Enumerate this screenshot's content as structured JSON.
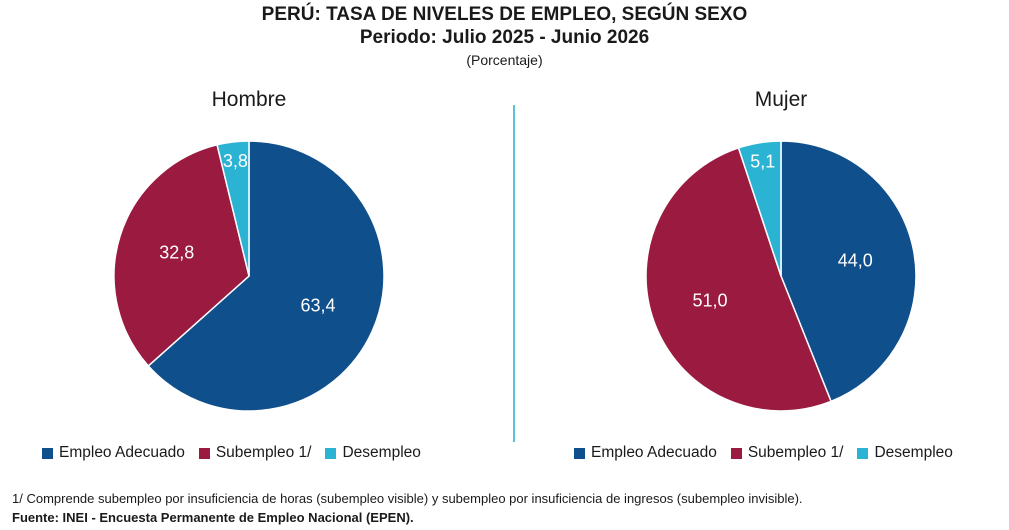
{
  "title": {
    "line1": "PERÚ: TASA DE NIVELES DE EMPLEO, SEGÚN SEXO",
    "line2": "Periodo: Julio 2025 - Junio 2026",
    "line3": "(Porcentaje)"
  },
  "chart_data": [
    {
      "type": "pie",
      "title": "Hombre",
      "categories": [
        "Empleo Adecuado",
        "Subempleo 1/",
        "Desempleo"
      ],
      "values": [
        63.4,
        32.8,
        3.8
      ],
      "labels": [
        "63,4",
        "32,8",
        "3,8"
      ],
      "colors": [
        "#0f4f8c",
        "#9a1a40",
        "#2bb3d3"
      ],
      "legend_position": "bottom"
    },
    {
      "type": "pie",
      "title": "Mujer",
      "categories": [
        "Empleo Adecuado",
        "Subempleo 1/",
        "Desempleo"
      ],
      "values": [
        44.0,
        51.0,
        5.1
      ],
      "labels": [
        "44,0",
        "51,0",
        "5,1"
      ],
      "colors": [
        "#0f4f8c",
        "#9a1a40",
        "#2bb3d3"
      ],
      "legend_position": "bottom"
    }
  ],
  "legend": {
    "items": [
      "Empleo Adecuado",
      "Subempleo 1/",
      "Desempleo"
    ]
  },
  "footnote": "1/ Comprende subempleo por insuficiencia de horas (subempleo visible) y subempleo por insuficiencia de ingresos (subempleo invisible).",
  "source": "Fuente: INEI - Encuesta Permanente de Empleo Nacional (EPEN).",
  "colors": {
    "adequate": "#0f4f8c",
    "underemployment": "#9a1a40",
    "unemployment": "#2bb3d3",
    "divider": "#5bc3d8"
  }
}
